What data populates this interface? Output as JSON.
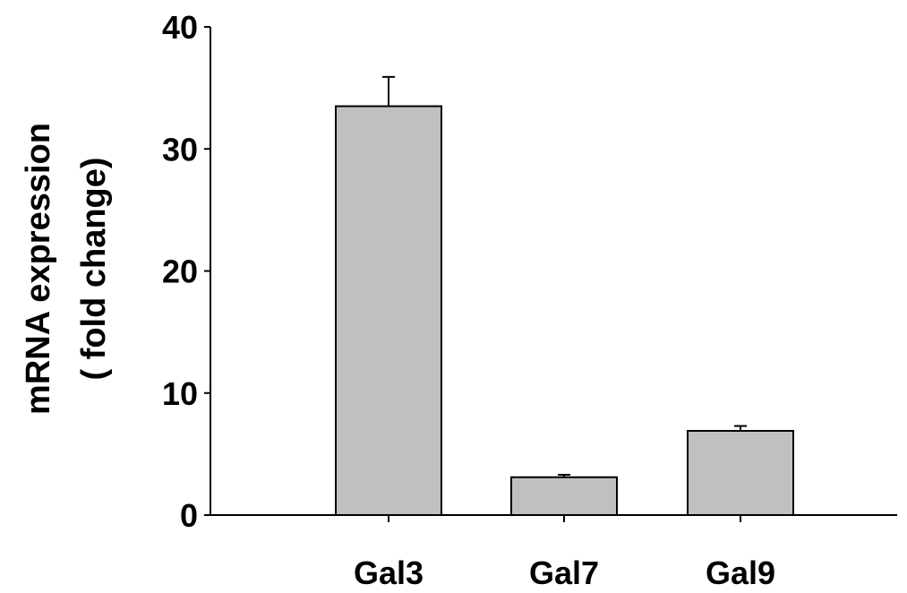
{
  "chart_data": {
    "type": "bar",
    "title": "",
    "xlabel": "",
    "ylabel": "mRNA expression",
    "ylabel_line2": "( fold change)",
    "categories": [
      "Gal3",
      "Gal7",
      "Gal9"
    ],
    "values": [
      33.5,
      3.1,
      6.9
    ],
    "errors": [
      2.4,
      0.2,
      0.4
    ],
    "ylim": [
      0,
      40
    ],
    "yticks": [
      0,
      10,
      20,
      30,
      40
    ],
    "ytick_labels": [
      "0",
      "10",
      "20",
      "30",
      "40"
    ],
    "grid": false,
    "legend": "none",
    "bar_color": "#c0c0c0",
    "edge_color": "#000000"
  }
}
